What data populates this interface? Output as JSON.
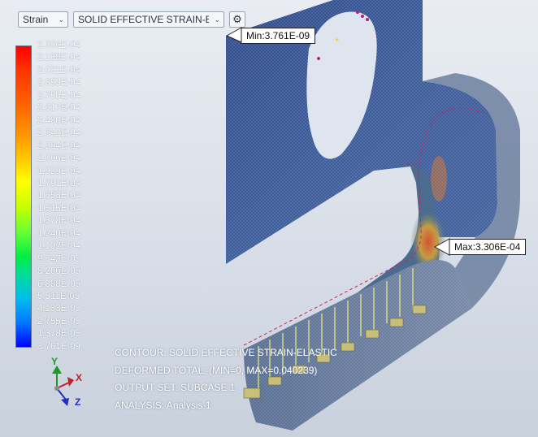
{
  "toolbar": {
    "quantity": "Strain",
    "component": "SOLID EFFECTIVE STRAIN-E",
    "settings_icon": "gear-icon"
  },
  "legend": {
    "labels": [
      "3.306E-04",
      "3.168E-04",
      "3.031E-04",
      "2.893E-04",
      "2.755E-04",
      "2.617E-04",
      "2.480E-04",
      "2.342E-04",
      "2.204E-04",
      "2.066E-04",
      "1.929E-04",
      "1.791E-04",
      "1.653E-04",
      "1.515E-04",
      "1.378E-04",
      "1.240E-04",
      "1.102E-04",
      "9.643E-05",
      "8.266E-05",
      "6.888E-05",
      "5.511E-05",
      "4.133E-05",
      "2.755E-05",
      "1.378E-05",
      "3.761E-09"
    ],
    "colors": {
      "max": "#ff0000",
      "mid": "#ffff00",
      "min": "#0000ff"
    }
  },
  "callouts": {
    "min": "Min:3.761E-09",
    "max": "Max:3.306E-04"
  },
  "info": {
    "contour": "CONTOUR: SOLID EFFECTIVE STRAIN-ELASTIC",
    "deformed": "DEFORMED TOTAL: (MIN=0, MAX=0.040239)",
    "output_set": "OUTPUT SET: SUBCASE 1",
    "analysis": "ANALYSIS: Analysis 1"
  },
  "triad": {
    "x": "X",
    "y": "Y",
    "z": "Z"
  }
}
